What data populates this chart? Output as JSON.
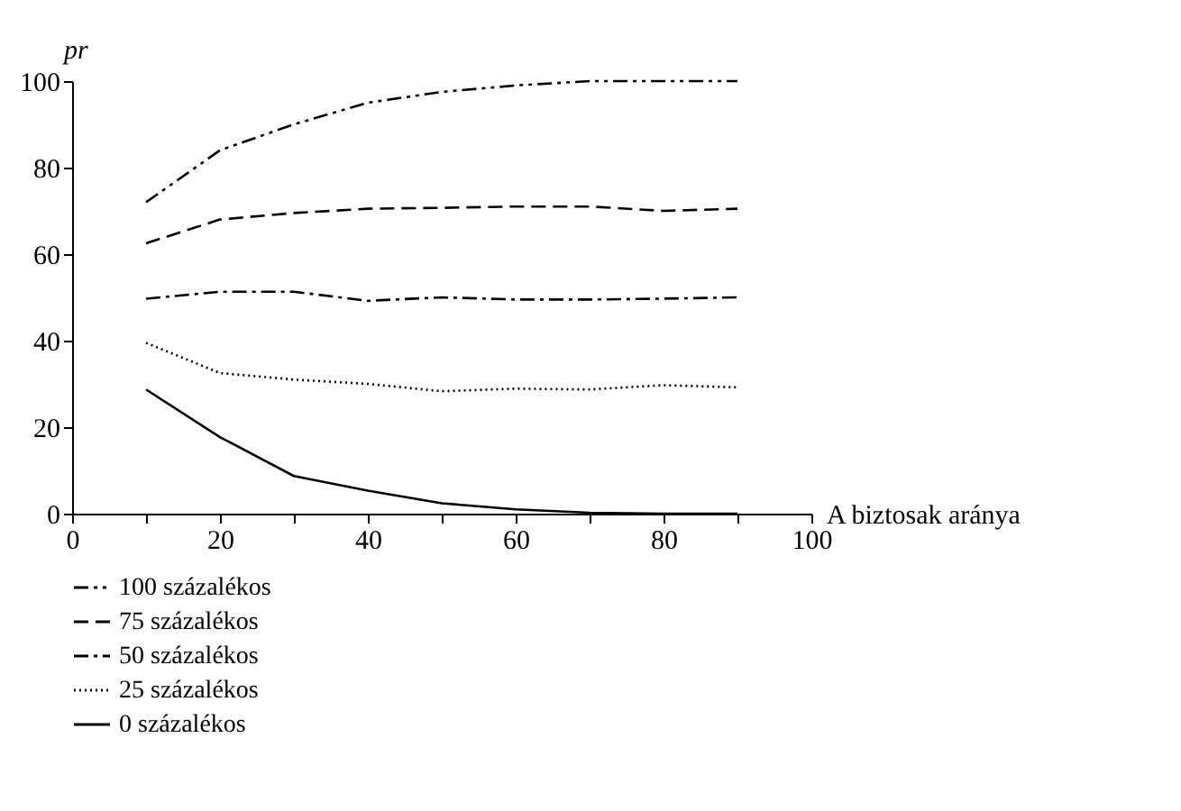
{
  "chart_data": {
    "type": "line",
    "xlabel": "A biztosak aránya",
    "ylabel": "pr",
    "x": [
      10,
      20,
      30,
      40,
      50,
      60,
      70,
      80,
      90
    ],
    "series": [
      {
        "name": "100 százalékos",
        "color": "#000000",
        "line_style": "dashdotdot",
        "values": [
          72,
          84,
          90,
          95,
          97.5,
          99,
          100,
          100,
          100
        ]
      },
      {
        "name": "75 százalékos",
        "color": "#000000",
        "line_style": "dashed",
        "values": [
          62.5,
          68,
          69.5,
          70.5,
          70.7,
          71,
          71,
          70,
          70.5
        ]
      },
      {
        "name": "50 százalékos",
        "color": "#000000",
        "line_style": "dashdot",
        "values": [
          49.7,
          51.3,
          51.3,
          49.2,
          50,
          49.5,
          49.5,
          49.7,
          50
        ]
      },
      {
        "name": "25 százalékos",
        "color": "#000000",
        "line_style": "dotted",
        "values": [
          39.5,
          32.5,
          31,
          30,
          28.3,
          28.9,
          28.7,
          29.7,
          29.2
        ]
      },
      {
        "name": "0 százalékos",
        "color": "#000000",
        "line_style": "solid",
        "values": [
          28.7,
          17.7,
          8.7,
          5.3,
          2.4,
          1.0,
          0.2,
          0,
          0
        ]
      }
    ],
    "xlim": [
      0,
      100
    ],
    "ylim": [
      0,
      100
    ],
    "xticks": [
      0,
      {
        "value": 10,
        "label": null
      },
      20,
      {
        "value": 30,
        "label": null
      },
      40,
      {
        "value": 50,
        "label": null
      },
      60,
      {
        "value": 70,
        "label": null
      },
      80,
      {
        "value": 90,
        "label": null
      },
      100
    ],
    "yticks": [
      0,
      20,
      40,
      60,
      80,
      100
    ],
    "grid": false,
    "legend": "bottom",
    "marker": "none"
  }
}
